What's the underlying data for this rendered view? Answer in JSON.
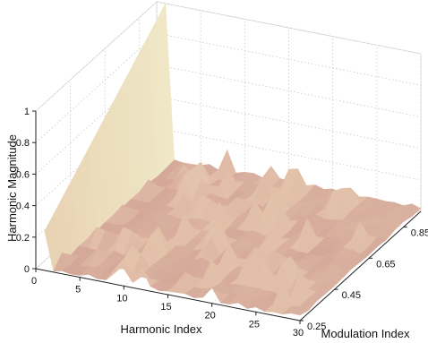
{
  "chart_data": {
    "type": "surface",
    "title": "",
    "xlabel": "Harmonic Index",
    "ylabel": "Modulation Index",
    "zlabel": "Harmonic Magnitude",
    "xlim": [
      0,
      30
    ],
    "ylim": [
      0.25,
      0.95
    ],
    "zlim": [
      0,
      1
    ],
    "x_ticks": [
      "0",
      "5",
      "10",
      "15",
      "20",
      "25",
      "30"
    ],
    "y_ticks": [
      "0.25",
      "0.45",
      "0.65",
      "0.85"
    ],
    "z_ticks": [
      "0",
      "0.2",
      "0.4",
      "0.6",
      "0.8",
      "1"
    ],
    "grid": true,
    "colormap": "pink",
    "description_series": [
      {
        "harmonic_index": 1,
        "magnitude_range": [
          0.25,
          1.0
        ]
      },
      {
        "harmonic_index": "2-30",
        "magnitude_range": [
          0.0,
          0.15
        ]
      }
    ],
    "notable_points": [
      {
        "harmonic_index": 1,
        "modulation_index": 0.95,
        "magnitude": 1.0
      },
      {
        "harmonic_index": 1,
        "modulation_index": 0.25,
        "magnitude": 0.25
      }
    ]
  }
}
